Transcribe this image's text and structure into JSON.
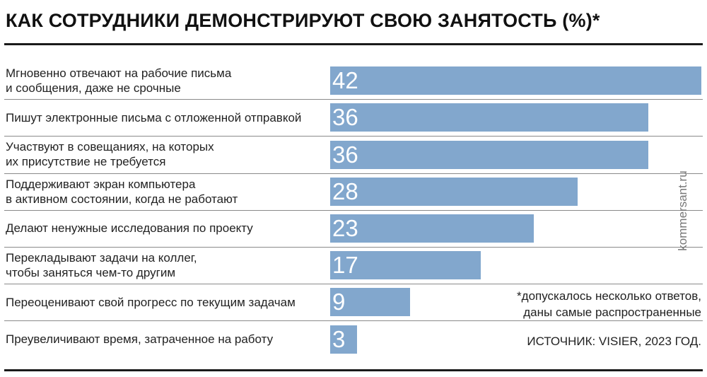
{
  "header": {
    "title": "КАК СОТРУДНИКИ ДЕМОНСТРИРУЮТ СВОЮ ЗАНЯТОСТЬ (%)*"
  },
  "chart_data": {
    "type": "bar",
    "orientation": "horizontal",
    "title": "КАК СОТРУДНИКИ ДЕМОНСТРИРУЮТ СВОЮ ЗАНЯТОСТЬ (%)*",
    "categories": [
      "Мгновенно отвечают на рабочие письма\nи сообщения, даже не срочные",
      "Пишут электронные письма с отложенной отправкой",
      "Участвуют в совещаниях, на которых\nих присутствие не требуется",
      "Поддерживают экран компьютера\nв активном состоянии, когда не работают",
      "Делают ненужные исследования по проекту",
      "Перекладывают задачи на коллег,\nчтобы заняться чем-то другим",
      "Переоценивают свой прогресс по текущим задачам",
      "Преувеличивают время, затраченное на работу"
    ],
    "values": [
      42,
      36,
      36,
      28,
      23,
      17,
      9,
      3
    ],
    "value_labels": [
      "42",
      "36",
      "36",
      "28",
      "23",
      "17",
      "9",
      "3"
    ],
    "xlim": [
      0,
      42
    ],
    "grid": false,
    "bar_color": "#82a7cd",
    "value_label_color": "#ffffff"
  },
  "footnote": "*допускалось несколько ответов,\nданы самые распространенные",
  "source": "ИСТОЧНИК: VISIER, 2023 ГОД.",
  "watermark": "kommersant.ru"
}
